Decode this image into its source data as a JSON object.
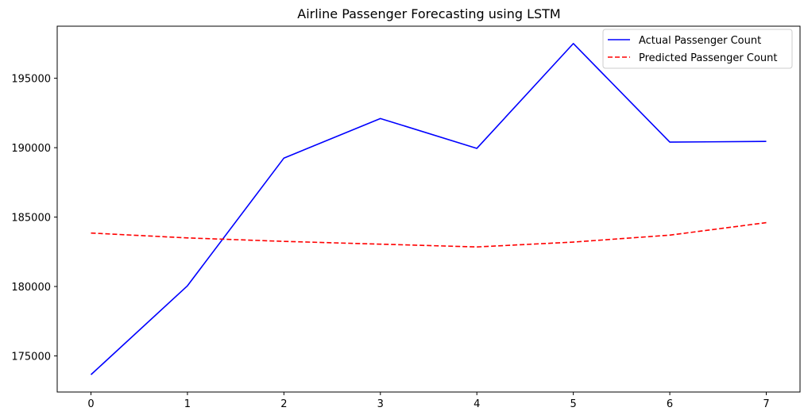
{
  "chart_data": {
    "type": "line",
    "title": "Airline Passenger Forecasting using LSTM",
    "xlabel": "",
    "ylabel": "",
    "x": [
      0,
      1,
      2,
      3,
      4,
      5,
      6,
      7
    ],
    "xticks": [
      "0",
      "1",
      "2",
      "3",
      "4",
      "5",
      "6",
      "7"
    ],
    "yticks": [
      175000,
      180000,
      185000,
      190000,
      195000
    ],
    "ytick_labels": [
      "175000",
      "180000",
      "185000",
      "190000",
      "195000"
    ],
    "xlim": [
      -0.35,
      7.35
    ],
    "ylim": [
      172400,
      198750
    ],
    "grid": false,
    "legend_position": "top-right",
    "series": [
      {
        "name": "Actual Passenger Count",
        "color": "#0000ff",
        "style": "solid",
        "values": [
          173650,
          180050,
          189250,
          192100,
          189950,
          197500,
          190400,
          190450
        ]
      },
      {
        "name": "Predicted Passenger Count",
        "color": "#ff0000",
        "style": "dashed",
        "values": [
          183850,
          183500,
          183250,
          183050,
          182850,
          183200,
          183700,
          184600
        ]
      }
    ]
  }
}
